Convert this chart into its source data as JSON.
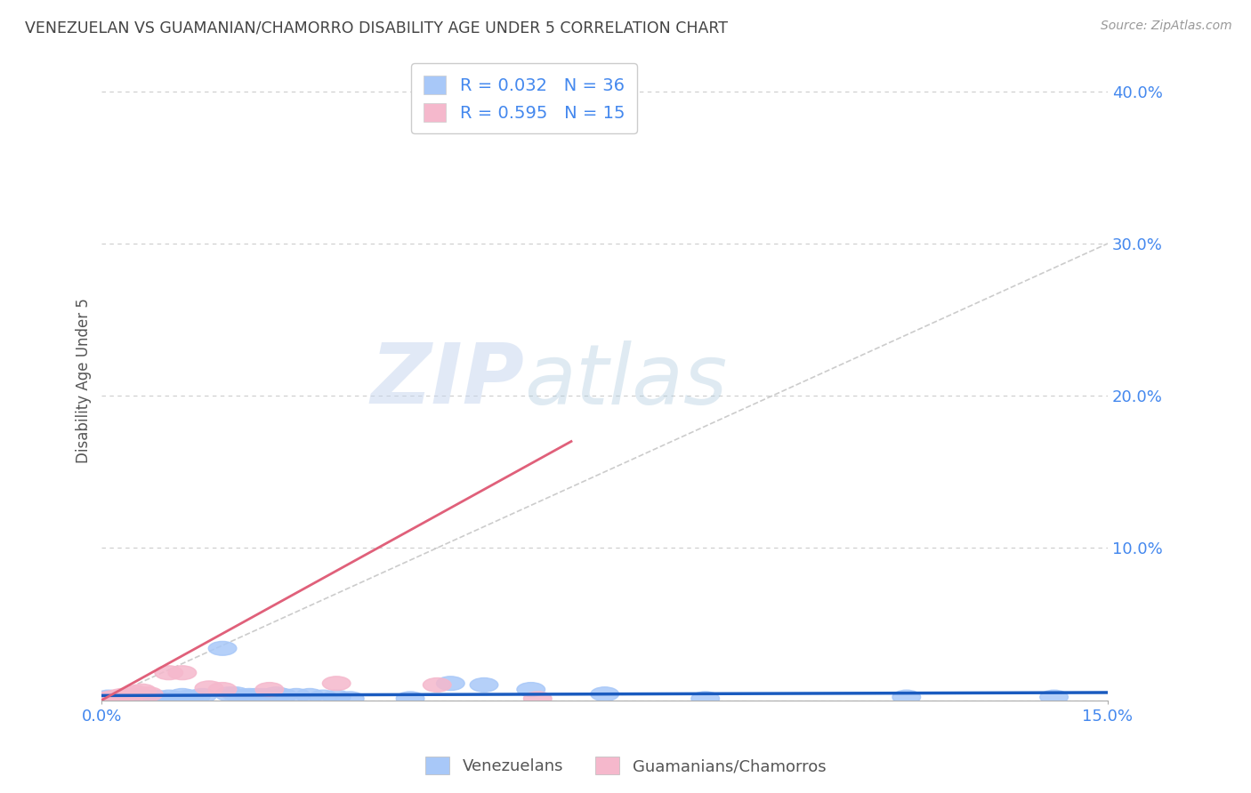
{
  "title": "VENEZUELAN VS GUAMANIAN/CHAMORRO DISABILITY AGE UNDER 5 CORRELATION CHART",
  "source": "Source: ZipAtlas.com",
  "ylabel": "Disability Age Under 5",
  "xlim": [
    0.0,
    0.15
  ],
  "ylim": [
    0.0,
    0.42
  ],
  "ytick_vals": [
    0.0,
    0.1,
    0.2,
    0.3,
    0.4
  ],
  "ytick_labels": [
    "",
    "10.0%",
    "20.0%",
    "30.0%",
    "40.0%"
  ],
  "venezuelan_color": "#a8c8f8",
  "guamanian_color": "#f5b8cc",
  "venezuelan_line_color": "#1a5bbf",
  "guamanian_line_color": "#e0607a",
  "legend_text_color": "#4488ee",
  "title_color": "#444444",
  "background_color": "#ffffff",
  "grid_color": "#cccccc",
  "watermark_color": "#d0dff5",
  "venezuelan_R": "0.032",
  "venezuelan_N": "36",
  "guamanian_R": "0.595",
  "guamanian_N": "15",
  "venezuelan_points": [
    [
      0.001,
      0.002
    ],
    [
      0.002,
      0.001
    ],
    [
      0.003,
      0.002
    ],
    [
      0.004,
      0.001
    ],
    [
      0.005,
      0.003
    ],
    [
      0.006,
      0.001
    ],
    [
      0.007,
      0.002
    ],
    [
      0.008,
      0.002
    ],
    [
      0.009,
      0.001
    ],
    [
      0.01,
      0.002
    ],
    [
      0.011,
      0.001
    ],
    [
      0.012,
      0.003
    ],
    [
      0.013,
      0.002
    ],
    [
      0.014,
      0.002
    ],
    [
      0.015,
      0.003
    ],
    [
      0.018,
      0.034
    ],
    [
      0.019,
      0.004
    ],
    [
      0.02,
      0.004
    ],
    [
      0.022,
      0.003
    ],
    [
      0.023,
      0.003
    ],
    [
      0.024,
      0.003
    ],
    [
      0.026,
      0.004
    ],
    [
      0.027,
      0.003
    ],
    [
      0.029,
      0.003
    ],
    [
      0.031,
      0.003
    ],
    [
      0.033,
      0.002
    ],
    [
      0.035,
      0.002
    ],
    [
      0.037,
      0.001
    ],
    [
      0.046,
      0.001
    ],
    [
      0.052,
      0.011
    ],
    [
      0.057,
      0.01
    ],
    [
      0.064,
      0.007
    ],
    [
      0.075,
      0.004
    ],
    [
      0.09,
      0.001
    ],
    [
      0.12,
      0.002
    ],
    [
      0.142,
      0.002
    ]
  ],
  "guamanian_points": [
    [
      0.001,
      0.001
    ],
    [
      0.002,
      0.002
    ],
    [
      0.003,
      0.003
    ],
    [
      0.004,
      0.001
    ],
    [
      0.005,
      0.005
    ],
    [
      0.006,
      0.006
    ],
    [
      0.007,
      0.004
    ],
    [
      0.01,
      0.018
    ],
    [
      0.012,
      0.018
    ],
    [
      0.016,
      0.008
    ],
    [
      0.018,
      0.007
    ],
    [
      0.025,
      0.007
    ],
    [
      0.035,
      0.011
    ],
    [
      0.05,
      0.01
    ],
    [
      0.065,
      0.001
    ]
  ],
  "ven_line_x0": 0.0,
  "ven_line_y0": 0.003,
  "ven_line_x1": 0.15,
  "ven_line_y1": 0.005,
  "gua_line_x0": 0.0,
  "gua_line_y0": 0.0,
  "gua_line_x1": 0.07,
  "gua_line_y1": 0.17,
  "dash_line_x0": 0.0,
  "dash_line_y0": 0.0,
  "dash_line_x1": 0.15,
  "dash_line_y1": 0.3
}
